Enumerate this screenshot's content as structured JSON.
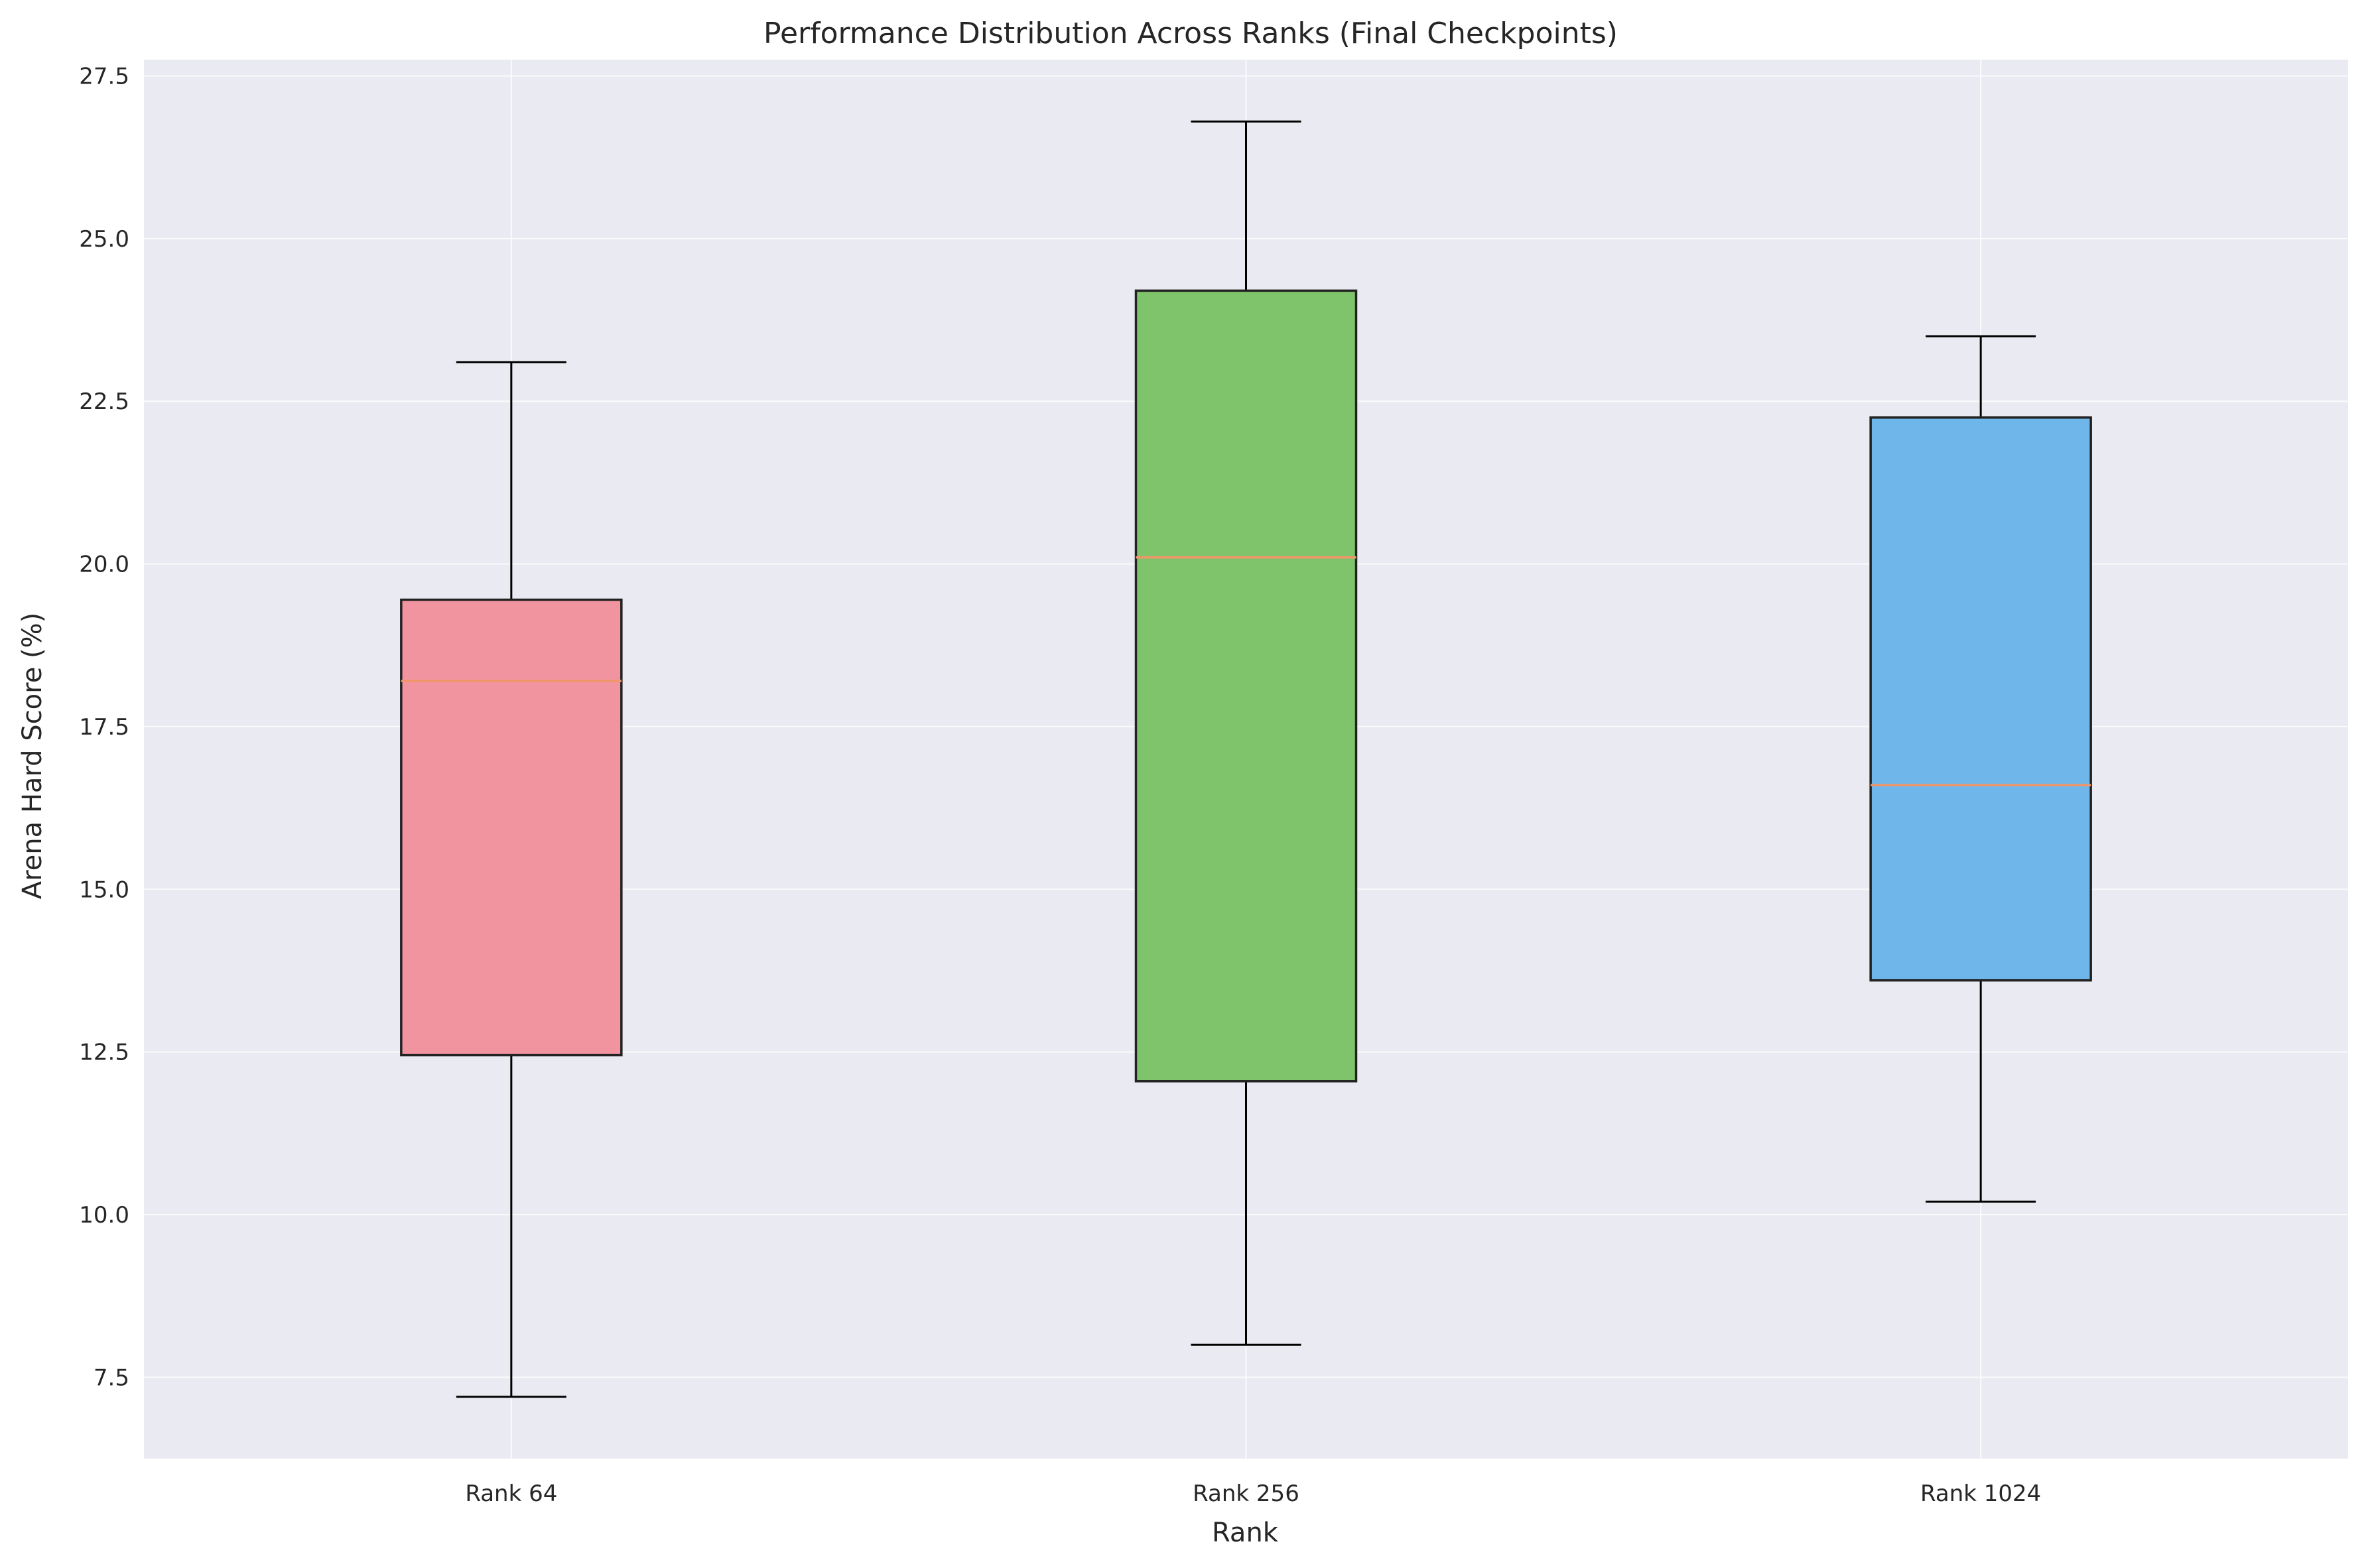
{
  "chart_data": {
    "type": "box",
    "title": "Performance Distribution Across Ranks (Final Checkpoints)",
    "xlabel": "Rank",
    "ylabel": "Arena Hard Score (%)",
    "ylim": [
      6.25,
      27.75
    ],
    "yticks": [
      7.5,
      10.0,
      12.5,
      15.0,
      17.5,
      20.0,
      22.5,
      25.0,
      27.5
    ],
    "ytick_labels": [
      "7.5",
      "10.0",
      "12.5",
      "15.0",
      "17.5",
      "20.0",
      "22.5",
      "25.0",
      "27.5"
    ],
    "grid": true,
    "categories": [
      "Rank 64",
      "Rank 256",
      "Rank 1024"
    ],
    "boxes": [
      {
        "category": "Rank 64",
        "whisker_low": 7.2,
        "q1": 12.45,
        "median": 18.2,
        "q3": 19.45,
        "whisker_high": 23.1,
        "color": "#f2949f"
      },
      {
        "category": "Rank 256",
        "whisker_low": 8.0,
        "q1": 12.05,
        "median": 20.1,
        "q3": 24.2,
        "whisker_high": 26.8,
        "color": "#7fc46a"
      },
      {
        "category": "Rank 1024",
        "whisker_low": 10.2,
        "q1": 13.6,
        "median": 16.6,
        "q3": 22.25,
        "whisker_high": 23.5,
        "color": "#6fb7ea"
      }
    ],
    "colors": {
      "background": "#eaeaf2",
      "median": "#f0966a",
      "edge": "#222222"
    }
  }
}
